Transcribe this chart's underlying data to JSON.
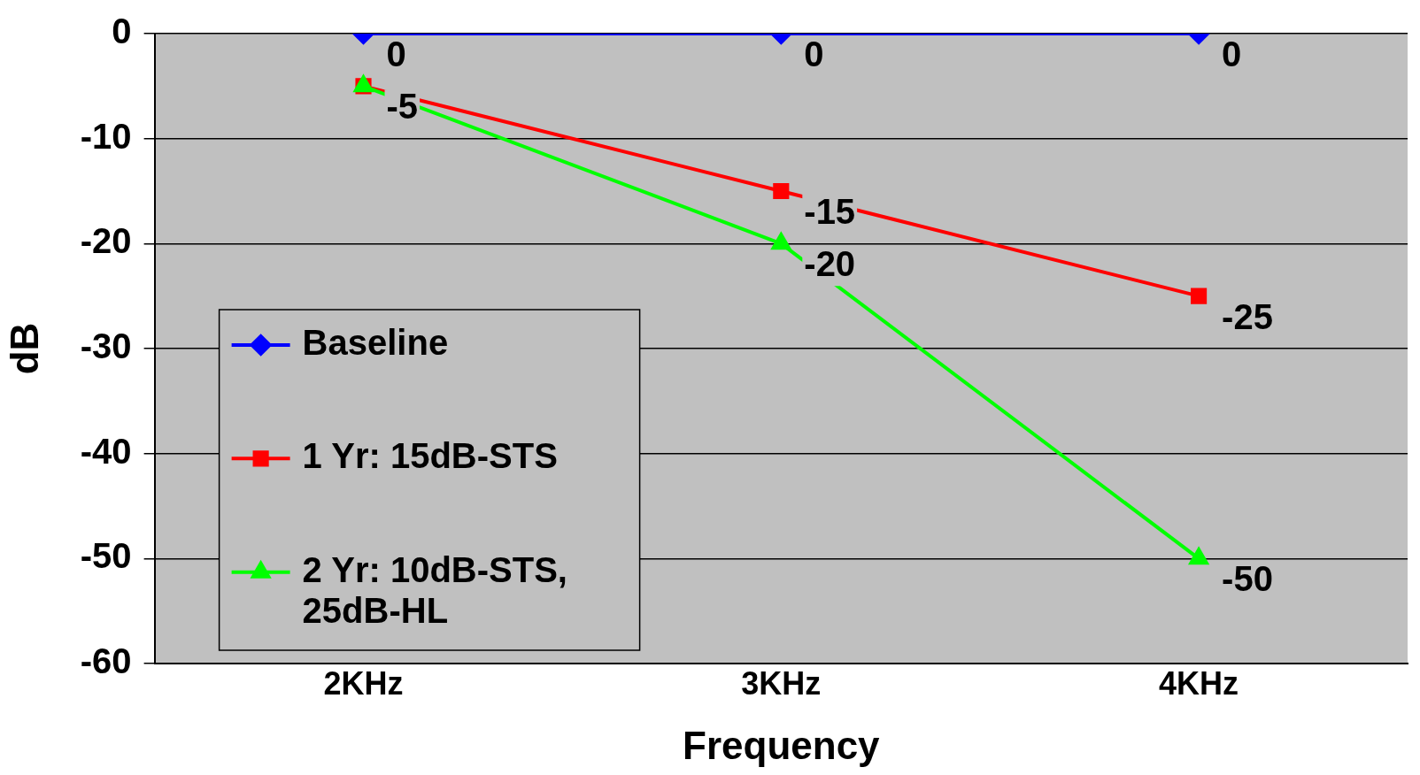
{
  "chart_data": {
    "type": "line",
    "xlabel": "Frequency",
    "ylabel": "dB",
    "categories": [
      "2KHz",
      "3KHz",
      "4KHz"
    ],
    "series": [
      {
        "name": "Baseline",
        "color": "#0000ff",
        "marker": "diamond",
        "values": [
          0,
          0,
          0
        ],
        "value_labels": [
          "0",
          "0",
          "0"
        ]
      },
      {
        "name": "1 Yr: 15dB-STS",
        "color": "#ff0000",
        "marker": "square",
        "values": [
          -5,
          -15,
          -25
        ],
        "value_labels": [
          "-5",
          "-15",
          "-25"
        ]
      },
      {
        "name": "2 Yr: 10dB-STS, 25dB-HL",
        "color": "#00ff00",
        "marker": "triangle",
        "values": [
          -5,
          -20,
          -50
        ],
        "value_labels": [
          null,
          "-20",
          "-50"
        ]
      }
    ],
    "ylim": [
      -60,
      0
    ],
    "yticks": [
      -60,
      -50,
      -40,
      -30,
      -20,
      -10,
      0
    ],
    "grid": "y",
    "legend": "bottom left"
  }
}
